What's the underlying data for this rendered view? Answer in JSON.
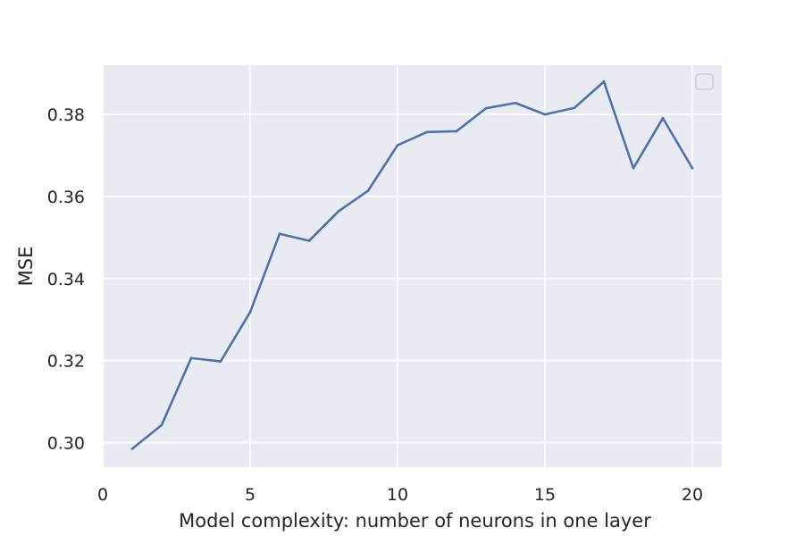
{
  "colors": {
    "plot_background": "#EAEAF2",
    "grid": "#FFFFFF",
    "line": "#4C72B0",
    "text": "#262626",
    "legend_border": "#CCCCCC"
  },
  "chart_data": {
    "type": "line",
    "title": "",
    "xlabel": "Model complexity: number of neurons in one layer",
    "ylabel": "MSE",
    "xlim": [
      0,
      21
    ],
    "ylim": [
      0.294,
      0.392
    ],
    "xticks": [
      0,
      5,
      10,
      15,
      20
    ],
    "yticks": [
      0.3,
      0.32,
      0.34,
      0.36,
      0.38
    ],
    "xtick_labels": [
      "0",
      "5",
      "10",
      "15",
      "20"
    ],
    "ytick_labels": [
      "0.30",
      "0.32",
      "0.34",
      "0.36",
      "0.38"
    ],
    "grid": true,
    "legend": "top-right",
    "series": [
      {
        "x": [
          1,
          2,
          3,
          4,
          5,
          6,
          7,
          8,
          9,
          10,
          11,
          12,
          13,
          14,
          15,
          16,
          17,
          18,
          19,
          20
        ],
        "values": [
          0.2985,
          0.3043,
          0.3206,
          0.3198,
          0.3318,
          0.3509,
          0.3492,
          0.3564,
          0.3614,
          0.3725,
          0.3757,
          0.3759,
          0.3815,
          0.3828,
          0.38,
          0.3816,
          0.388,
          0.3669,
          0.3791,
          0.3669
        ]
      }
    ]
  }
}
